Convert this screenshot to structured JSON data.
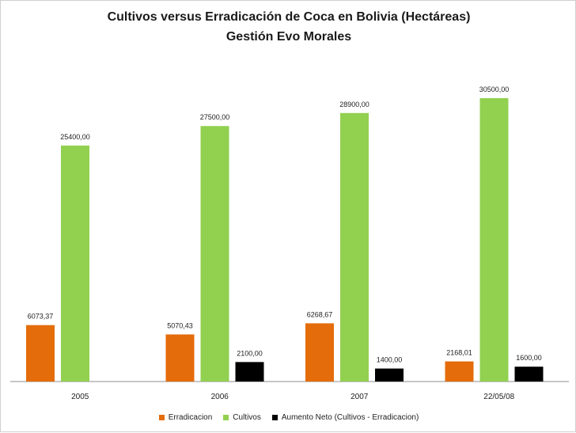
{
  "chart_data": {
    "type": "bar",
    "title": "Cultivos versus Erradicación  de Coca en Bolivia (Hectáreas)",
    "subtitle": "Gestión Evo Morales",
    "categories": [
      "2005",
      "2006",
      "2007",
      "22/05/08"
    ],
    "series": [
      {
        "name": "Erradicacion",
        "color": "#e46c0a",
        "values": [
          6073.37,
          5070.43,
          6268.67,
          2168.01
        ],
        "labels": [
          "6073,37",
          "5070,43",
          "6268,67",
          "2168,01"
        ]
      },
      {
        "name": "Cultivos",
        "color": "#92d050",
        "values": [
          25400,
          27500,
          28900,
          30500
        ],
        "labels": [
          "25400,00",
          "27500,00",
          "28900,00",
          "30500,00"
        ]
      },
      {
        "name": "Aumento Neto (Cultivos - Erradicacion)",
        "color": "#000000",
        "values": [
          null,
          2100,
          1400,
          1600
        ],
        "labels": [
          "",
          "2100,00",
          "1400,00",
          "1600,00"
        ]
      }
    ],
    "ylim": [
      0,
      30500
    ],
    "grid": false,
    "legend_position": "bottom"
  }
}
